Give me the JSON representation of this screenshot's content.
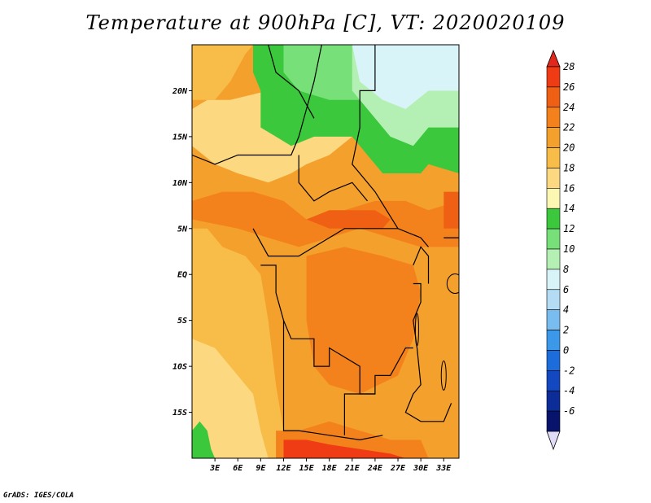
{
  "title": "Temperature at 900hPa [C], VT: 2020020109",
  "credit": "GrADS: IGES/COLA",
  "chart_data": {
    "type": "heatmap",
    "title": "Temperature at 900hPa [C], VT: 2020020109",
    "variable": "Temperature at 900hPa",
    "unit": "C",
    "valid_time": "2020020109",
    "lon_range": [
      0,
      35
    ],
    "lat_range": [
      -20,
      25
    ],
    "x_ticks": [
      "3E",
      "6E",
      "9E",
      "12E",
      "15E",
      "18E",
      "21E",
      "24E",
      "27E",
      "30E",
      "33E"
    ],
    "x_tick_values": [
      3,
      6,
      9,
      12,
      15,
      18,
      21,
      24,
      27,
      30,
      33
    ],
    "y_ticks": [
      "20N",
      "15N",
      "10N",
      "5N",
      "EQ",
      "5S",
      "10S",
      "15S"
    ],
    "y_tick_values": [
      20,
      15,
      10,
      5,
      0,
      -5,
      -10,
      -15
    ],
    "colorbar": {
      "levels": [
        28,
        26,
        24,
        22,
        20,
        18,
        16,
        14,
        12,
        10,
        8,
        6,
        4,
        2,
        0,
        -2,
        -4,
        -6
      ],
      "colors": [
        "#f03c14",
        "#f06014",
        "#f4821c",
        "#f4a02c",
        "#f8bc48",
        "#fcd880",
        "#fcf8b4",
        "#3cc83c",
        "#78e078",
        "#b4f0b4",
        "#d8f4f8",
        "#b4dcf4",
        "#78bcf0",
        "#3c98e8",
        "#1c6cdc",
        "#1448c0",
        "#0c2c98",
        "#08146c"
      ],
      "top_color": "#e0281c",
      "bottom_color": "#e0dcf8"
    },
    "regions": [
      {
        "name": "north-sahara-cool",
        "value": 14,
        "color": "#3cc83c"
      },
      {
        "name": "northeast-cold",
        "value": 9,
        "color": "#d8f4f8"
      },
      {
        "name": "sahel-warm",
        "value": 18,
        "color": "#fcd880"
      },
      {
        "name": "congo-basin",
        "value": 23,
        "color": "#f4a02c"
      },
      {
        "name": "central-hot",
        "value": 25,
        "color": "#f4821c"
      },
      {
        "name": "southern-hot",
        "value": 27,
        "color": "#f03c14"
      },
      {
        "name": "atlantic-coast",
        "value": 20,
        "color": "#f8bc48"
      },
      {
        "name": "angola-coast",
        "value": 18,
        "color": "#fcd880"
      },
      {
        "name": "southwest-cool",
        "value": 14,
        "color": "#3cc83c"
      }
    ]
  }
}
